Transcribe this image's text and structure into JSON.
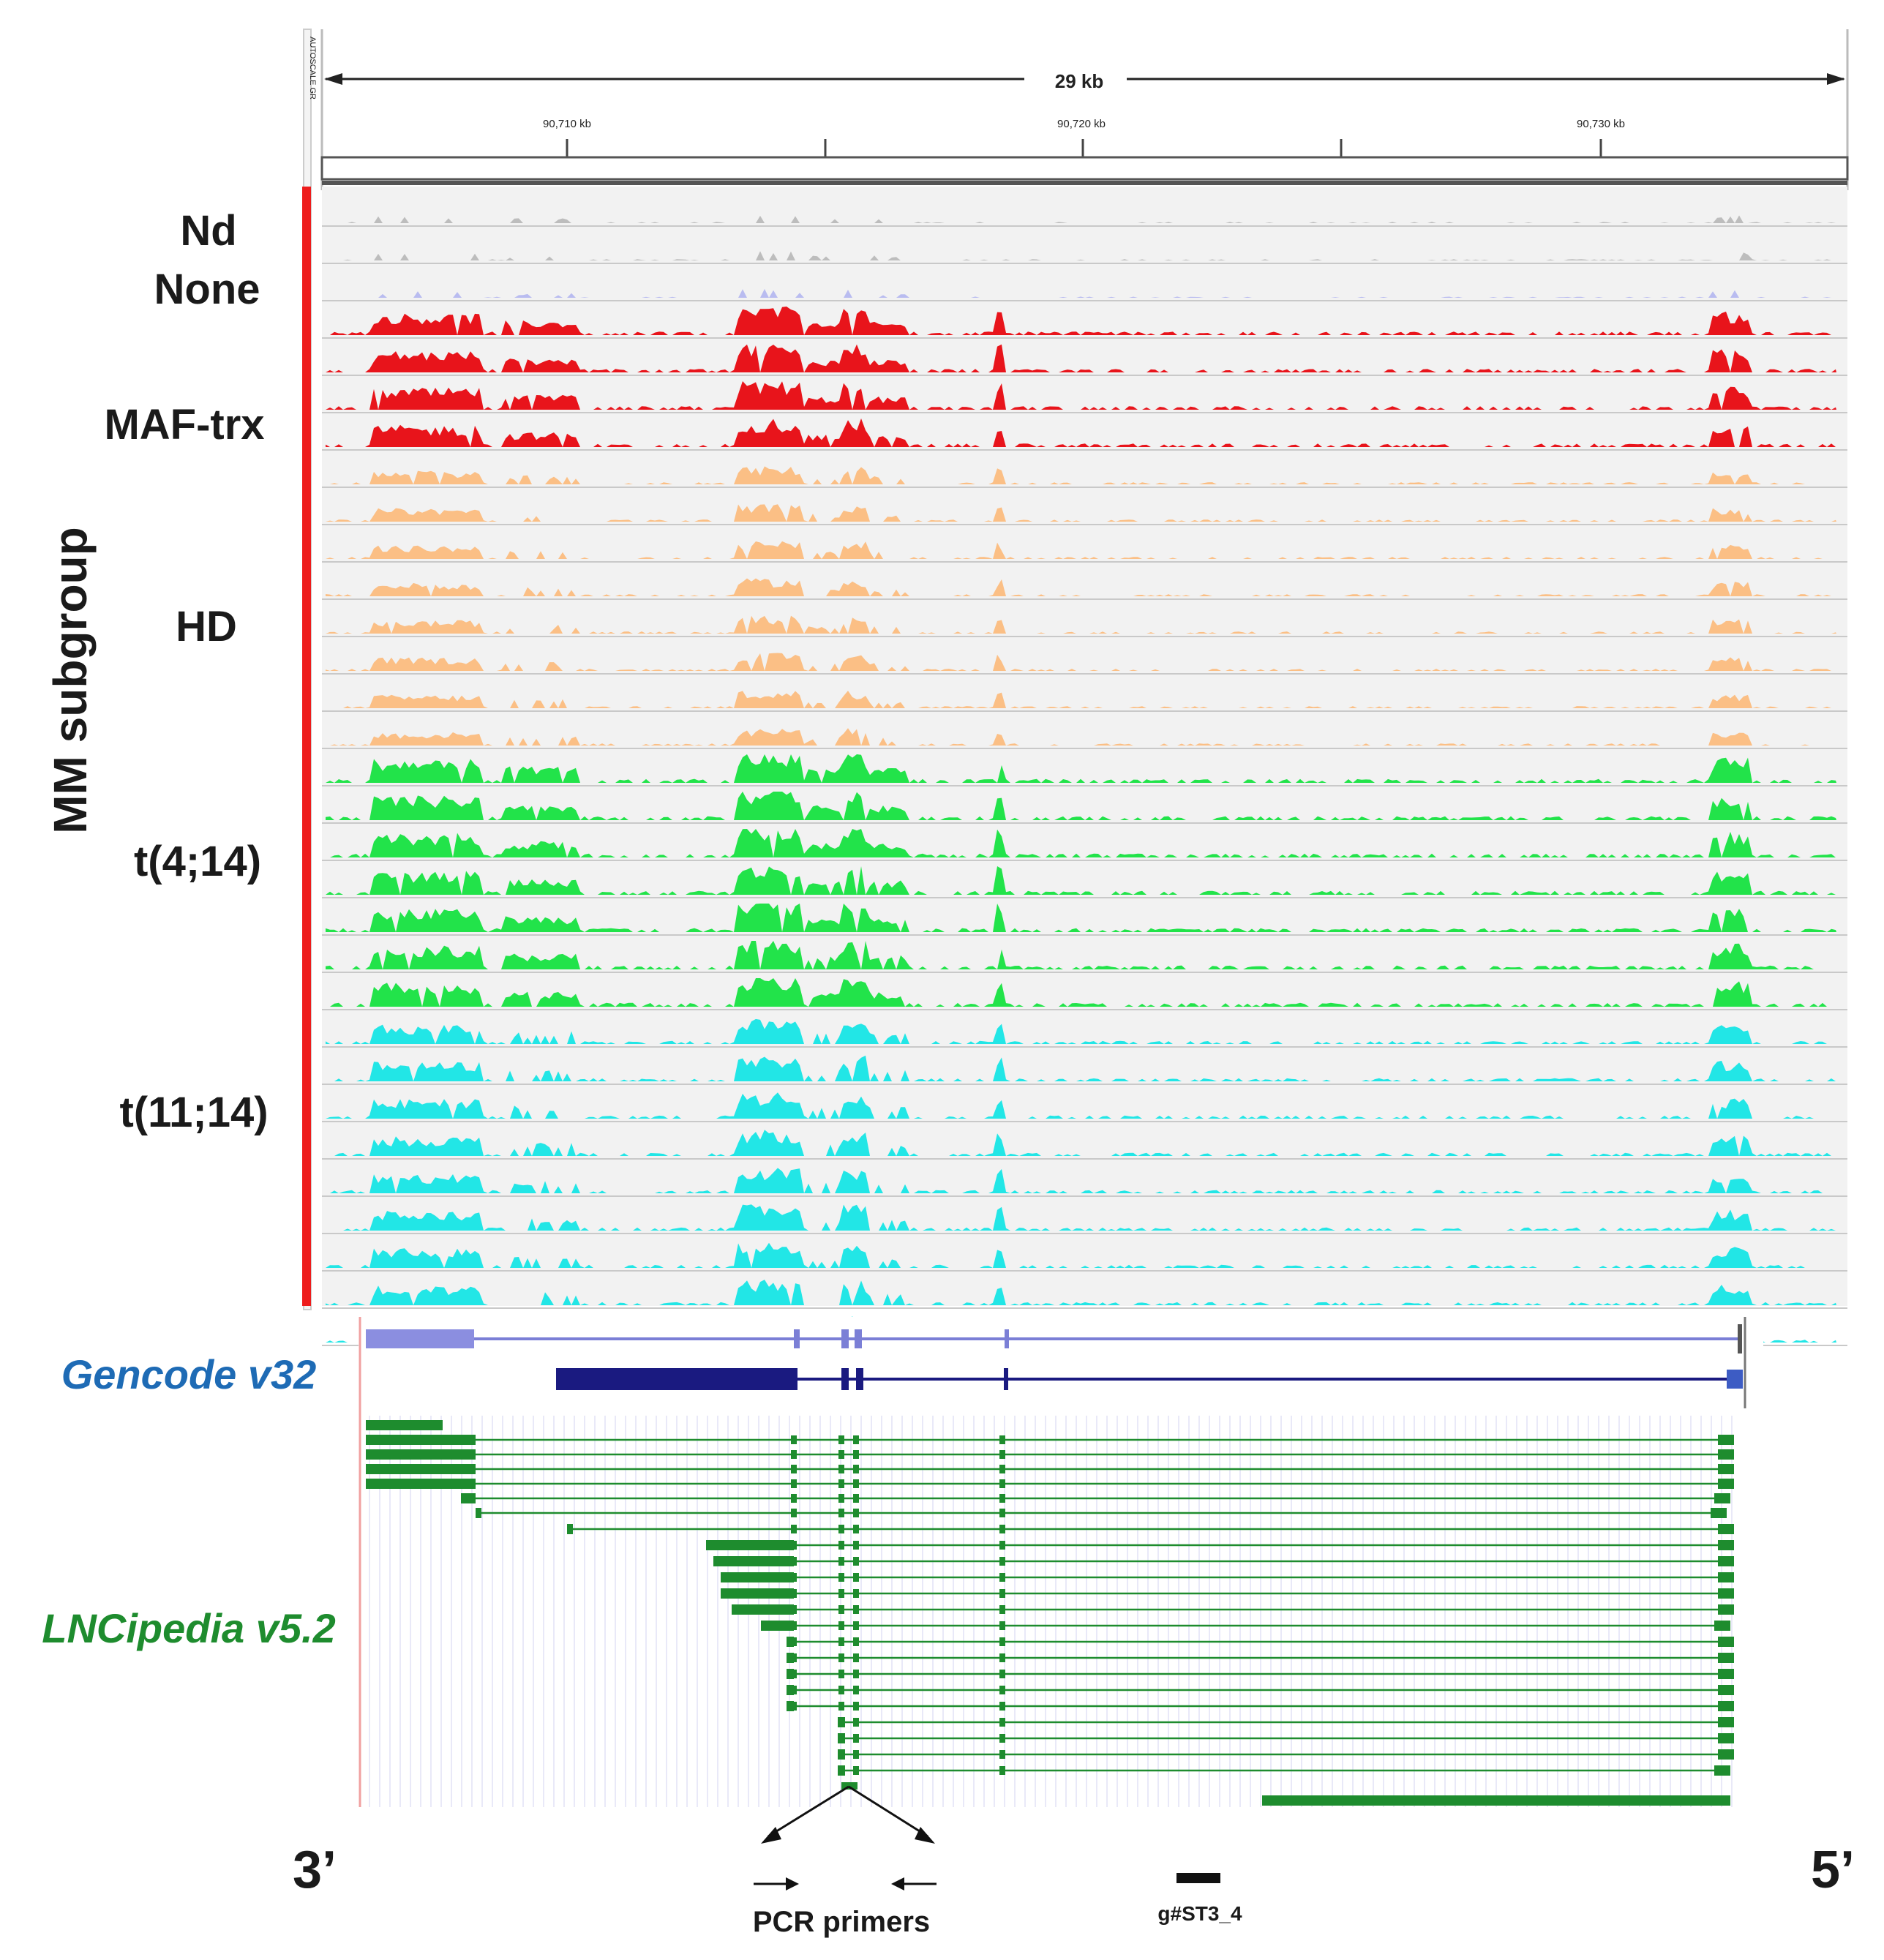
{
  "ruler": {
    "span_label": "29 kb",
    "ticks": [
      "90,710 kb",
      "90,720 kb",
      "90,730 kb"
    ],
    "autoscale_label": "AUTOSCALE GR"
  },
  "axis_title": "MM subgroup",
  "groups": [
    {
      "label": "Nd",
      "color": "#bdbdbd",
      "tracks": 2
    },
    {
      "label": "None",
      "color": "#b9bcf0",
      "tracks": 1
    },
    {
      "label": "MAF-trx",
      "color": "#e8141b",
      "tracks": 4
    },
    {
      "label": "HD",
      "color": "#fbbf85",
      "tracks": 8
    },
    {
      "label": "t(4;14)",
      "color": "#22e34a",
      "tracks": 7
    },
    {
      "label": "t(11;14)",
      "color": "#22e6e6",
      "tracks": 9
    }
  ],
  "annotations": {
    "gencode_label": "Gencode v32",
    "lncipedia_label": "LNCipedia v5.2",
    "gencode_color": "#1a1a80",
    "lncipedia_color": "#1e8c2e"
  },
  "bottom": {
    "left_end": "3’",
    "right_end": "5’",
    "primer_label": "PCR primers",
    "guide_label": "g#ST3_4"
  }
}
